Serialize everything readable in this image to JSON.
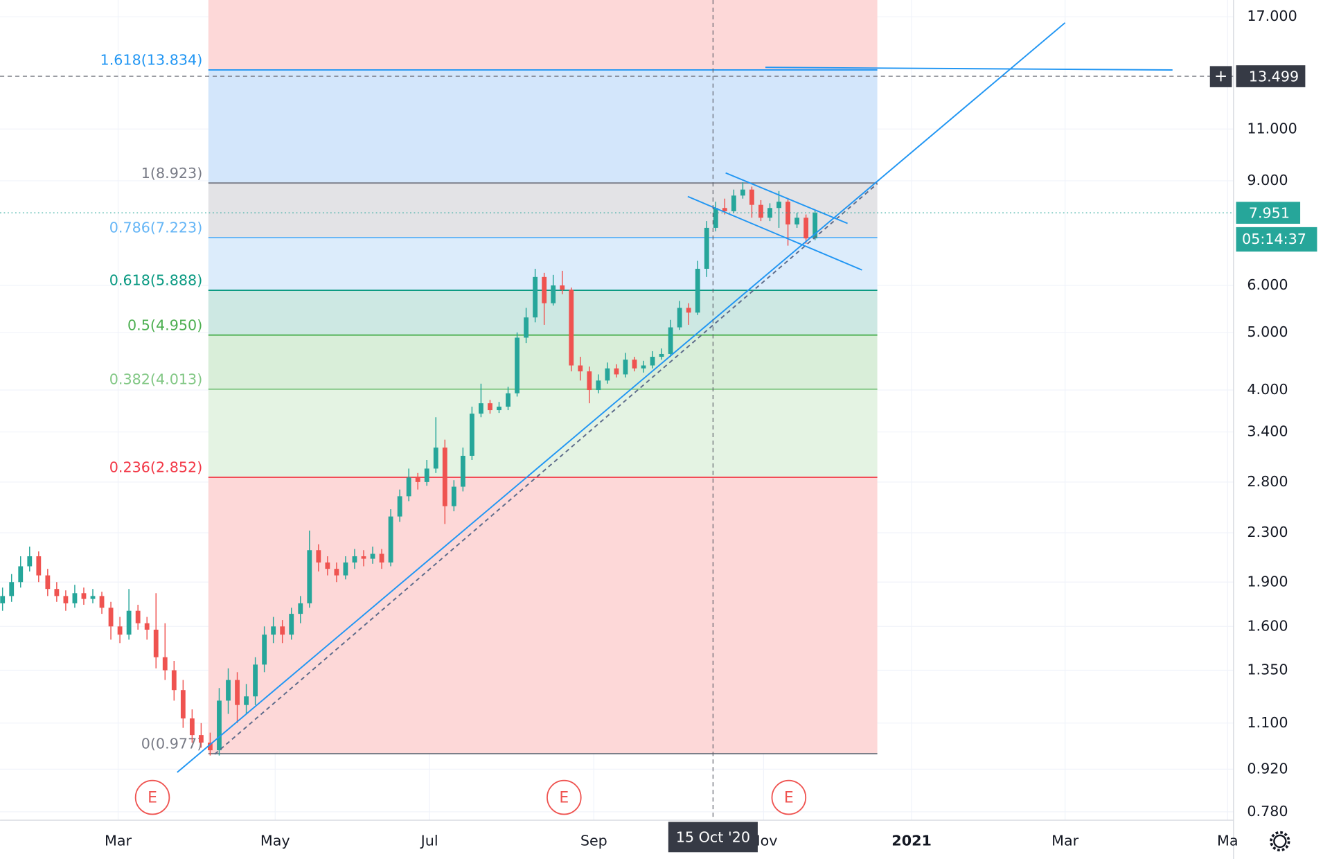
{
  "chart_data": {
    "type": "candlestick",
    "log_scale": true,
    "grid": true,
    "up_color": "#26a69a",
    "down_color": "#ef5350",
    "ylim": [
      0.755,
      18.14
    ],
    "yticks": [
      {
        "value": 17,
        "label": "17.000"
      },
      {
        "value": 11,
        "label": "11.000"
      },
      {
        "value": 9,
        "label": "9.000"
      },
      {
        "value": 6,
        "label": "6.000"
      },
      {
        "value": 5,
        "label": "5.000"
      },
      {
        "value": 4,
        "label": "4.000"
      },
      {
        "value": 3.4,
        "label": "3.400"
      },
      {
        "value": 2.8,
        "label": "2.800"
      },
      {
        "value": 2.3,
        "label": "2.300"
      },
      {
        "value": 1.9,
        "label": "1.900"
      },
      {
        "value": 1.6,
        "label": "1.600"
      },
      {
        "value": 1.35,
        "label": "1.350"
      },
      {
        "value": 1.1,
        "label": "1.100"
      },
      {
        "value": 0.92,
        "label": "0.920"
      },
      {
        "value": 0.78,
        "label": "0.780"
      }
    ],
    "xlim": [
      -0.28,
      136.36
    ],
    "xticks": [
      {
        "value": 12.8,
        "label": "Mar"
      },
      {
        "value": 30.2,
        "label": "May"
      },
      {
        "value": 47.3,
        "label": "Jul"
      },
      {
        "value": 65.5,
        "label": "Sep"
      },
      {
        "value": 84.3,
        "label": "Nov"
      },
      {
        "value": 100.7,
        "label": "2021"
      },
      {
        "value": 117.7,
        "label": "Mar"
      },
      {
        "value": 135.7,
        "label": "Ma"
      }
    ],
    "open": [
      1.75,
      1.8,
      1.9,
      2.02,
      2.1,
      1.95,
      1.85,
      1.8,
      1.75,
      1.82,
      1.78,
      1.8,
      1.72,
      1.6,
      1.55,
      1.7,
      1.62,
      1.58,
      1.42,
      1.35,
      1.25,
      1.12,
      1.05,
      1.02,
      0.99,
      1.2,
      1.3,
      1.18,
      1.22,
      1.38,
      1.55,
      1.6,
      1.55,
      1.68,
      1.75,
      2.15,
      2.05,
      2.0,
      1.95,
      2.05,
      2.1,
      2.08,
      2.12,
      2.05,
      2.45,
      2.65,
      2.85,
      2.8,
      2.95,
      3.2,
      2.55,
      2.75,
      3.1,
      3.65,
      3.8,
      3.7,
      3.75,
      3.95,
      4.9,
      5.3,
      6.2,
      5.6,
      6.0,
      5.9,
      4.4,
      4.3,
      4.0,
      4.15,
      4.35,
      4.25,
      4.5,
      4.35,
      4.4,
      4.55,
      4.6,
      5.1,
      5.5,
      5.4,
      6.4,
      7.5,
      8.1,
      8.0,
      8.5,
      8.7,
      8.2,
      7.8,
      8.1,
      8.3,
      7.6,
      7.8,
      7.2
    ],
    "high": [
      1.86,
      1.96,
      2.1,
      2.18,
      2.14,
      2.0,
      1.9,
      1.84,
      1.88,
      1.86,
      1.85,
      1.83,
      1.76,
      1.66,
      1.85,
      1.74,
      1.66,
      1.82,
      1.62,
      1.4,
      1.3,
      1.16,
      1.1,
      1.06,
      1.26,
      1.36,
      1.34,
      1.28,
      1.42,
      1.6,
      1.66,
      1.64,
      1.72,
      1.8,
      2.32,
      2.2,
      2.1,
      2.05,
      2.1,
      2.16,
      2.15,
      2.18,
      2.16,
      2.52,
      2.72,
      2.95,
      2.9,
      3.05,
      3.6,
      3.3,
      2.82,
      3.2,
      3.75,
      4.1,
      3.85,
      3.82,
      4.05,
      5.0,
      5.5,
      6.4,
      6.3,
      6.25,
      6.35,
      5.95,
      4.55,
      4.38,
      4.25,
      4.45,
      4.42,
      4.62,
      4.55,
      4.48,
      4.65,
      4.7,
      5.25,
      5.65,
      5.6,
      6.6,
      7.7,
      8.3,
      8.4,
      8.7,
      8.95,
      8.8,
      8.35,
      8.25,
      8.65,
      8.4,
      7.95,
      7.9,
      8.05
    ],
    "low": [
      1.7,
      1.76,
      1.86,
      1.98,
      1.9,
      1.8,
      1.76,
      1.7,
      1.72,
      1.74,
      1.75,
      1.68,
      1.52,
      1.5,
      1.52,
      1.58,
      1.52,
      1.36,
      1.3,
      1.2,
      1.08,
      1.02,
      1.0,
      0.97,
      0.97,
      1.14,
      1.1,
      1.14,
      1.18,
      1.34,
      1.5,
      1.5,
      1.52,
      1.62,
      1.72,
      1.98,
      1.95,
      1.9,
      1.92,
      2.0,
      2.02,
      2.04,
      2.0,
      2.02,
      2.4,
      2.6,
      2.72,
      2.76,
      2.9,
      2.38,
      2.5,
      2.7,
      3.05,
      3.6,
      3.65,
      3.66,
      3.7,
      3.9,
      4.8,
      5.2,
      5.15,
      5.55,
      5.8,
      4.3,
      4.15,
      3.8,
      3.95,
      4.1,
      4.2,
      4.2,
      4.3,
      4.28,
      4.35,
      4.5,
      4.55,
      5.05,
      5.15,
      5.35,
      6.2,
      7.4,
      7.9,
      7.95,
      8.4,
      7.8,
      7.7,
      7.7,
      7.5,
      7.0,
      7.5,
      7.05,
      7.15
    ],
    "close": [
      1.8,
      1.9,
      2.02,
      2.1,
      1.95,
      1.85,
      1.8,
      1.75,
      1.82,
      1.78,
      1.8,
      1.72,
      1.6,
      1.55,
      1.7,
      1.62,
      1.58,
      1.42,
      1.35,
      1.25,
      1.12,
      1.05,
      1.02,
      0.99,
      1.2,
      1.3,
      1.18,
      1.22,
      1.38,
      1.55,
      1.6,
      1.55,
      1.68,
      1.75,
      2.15,
      2.05,
      2.0,
      1.95,
      2.05,
      2.1,
      2.08,
      2.12,
      2.05,
      2.45,
      2.65,
      2.85,
      2.8,
      2.95,
      3.2,
      2.55,
      2.75,
      3.1,
      3.65,
      3.8,
      3.7,
      3.75,
      3.95,
      4.9,
      5.3,
      6.2,
      5.6,
      6.0,
      5.9,
      4.4,
      4.3,
      4.0,
      4.15,
      4.35,
      4.25,
      4.5,
      4.35,
      4.4,
      4.55,
      4.6,
      5.1,
      5.5,
      5.4,
      6.4,
      7.5,
      8.1,
      8.0,
      8.5,
      8.7,
      8.2,
      7.8,
      8.1,
      8.3,
      7.6,
      7.8,
      7.2,
      7.951
    ],
    "fib": {
      "x_range": [
        22.8,
        96.9
      ],
      "levels": [
        {
          "price": 0.977,
          "label": "0(0.977)",
          "color": "#787b86"
        },
        {
          "price": 2.852,
          "label": "0.236(2.852)",
          "color": "#f23645"
        },
        {
          "price": 4.013,
          "label": "0.382(4.013)",
          "color": "#81c784"
        },
        {
          "price": 4.95,
          "label": "0.5(4.950)",
          "color": "#4caf50"
        },
        {
          "price": 5.888,
          "label": "0.618(5.888)",
          "color": "#089981"
        },
        {
          "price": 7.223,
          "label": "0.786(7.223)",
          "color": "#64b5f6"
        },
        {
          "price": 8.923,
          "label": "1(8.923)",
          "color": "#787b86"
        },
        {
          "price": 13.834,
          "label": "1.618(13.834)",
          "color": "#2196f3"
        }
      ],
      "zone_colors": [
        "#fdd8d8",
        "#e4f3e3",
        "#d9eed9",
        "#cde8e3",
        "#dcecfb",
        "#e3e3e6",
        "#d3e6fb",
        "#fdd8d8"
      ]
    },
    "drawings": [
      {
        "points": [
          [
            19.35,
            0.909
          ],
          [
            117.7,
            16.61
          ]
        ],
        "color": "#2196f3",
        "dash": false
      },
      {
        "points": [
          [
            23.5,
            0.975
          ],
          [
            96.9,
            8.9
          ]
        ],
        "color": "#5d6b8a",
        "dash": true
      },
      {
        "points": [
          [
            80.1,
            9.28
          ],
          [
            93.6,
            7.63
          ]
        ],
        "color": "#2196f3",
        "dash": false
      },
      {
        "points": [
          [
            75.9,
            8.47
          ],
          [
            95.2,
            6.37
          ]
        ],
        "color": "#2196f3",
        "dash": false
      },
      {
        "points": [
          [
            84.5,
            13.97
          ],
          [
            129.6,
            13.83
          ]
        ],
        "color": "#2196f3",
        "dash": false
      }
    ],
    "earnings": {
      "x": [
        16.6,
        62.2,
        87.1
      ],
      "labels": [
        "E",
        "E",
        "E"
      ]
    },
    "crosshair": {
      "x": 78.7,
      "x_label": "15 Oct '20",
      "y": 13.499
    },
    "last_price": 7.951,
    "countdown": "05:14:37"
  }
}
